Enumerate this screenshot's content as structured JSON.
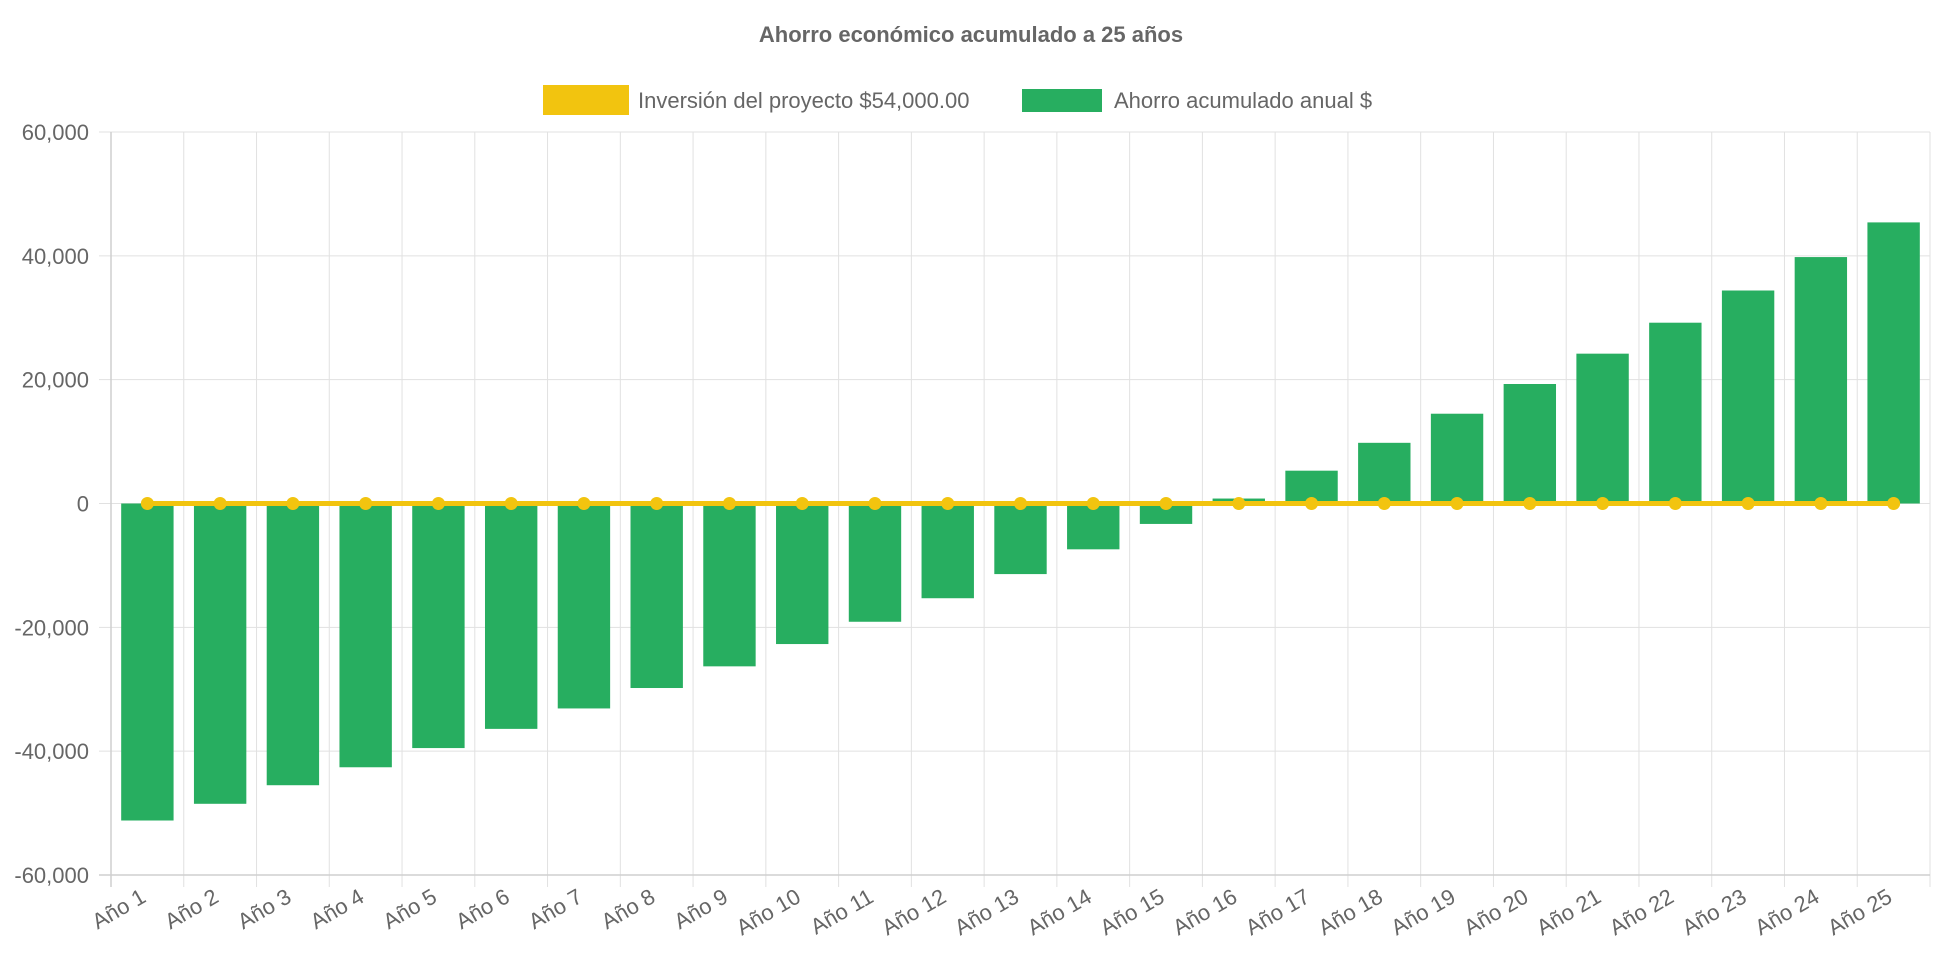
{
  "chart_data": {
    "type": "bar",
    "title": "Ahorro económico acumulado a 25 años",
    "categories": [
      "Año 1",
      "Año 2",
      "Año 3",
      "Año 4",
      "Año 5",
      "Año 6",
      "Año 7",
      "Año 8",
      "Año 9",
      "Año 10",
      "Año 11",
      "Año 12",
      "Año 13",
      "Año 14",
      "Año 15",
      "Año 16",
      "Año 17",
      "Año 18",
      "Año 19",
      "Año 20",
      "Año 21",
      "Año 22",
      "Año 23",
      "Año 24",
      "Año 25"
    ],
    "series": [
      {
        "name": "Inversión del proyecto $54,000.00",
        "type": "line",
        "color": "#f2c40f",
        "values": [
          0,
          0,
          0,
          0,
          0,
          0,
          0,
          0,
          0,
          0,
          0,
          0,
          0,
          0,
          0,
          0,
          0,
          0,
          0,
          0,
          0,
          0,
          0,
          0,
          0
        ]
      },
      {
        "name": "Ahorro acumulado anual $",
        "type": "bar",
        "color": "#27ae60",
        "values": [
          -51200,
          -48500,
          -45500,
          -42600,
          -39500,
          -36400,
          -33100,
          -29800,
          -26300,
          -22700,
          -19100,
          -15300,
          -11400,
          -7400,
          -3300,
          800,
          5300,
          9800,
          14500,
          19300,
          24200,
          29200,
          34400,
          39800,
          45400
        ]
      }
    ],
    "ylim": [
      -60000,
      60000
    ],
    "yticks": [
      "60,000",
      "40,000",
      "20,000",
      "0",
      "-20,000",
      "-40,000",
      "-60,000"
    ],
    "ytick_values": [
      60000,
      40000,
      20000,
      0,
      -20000,
      -40000,
      -60000
    ],
    "grid": true,
    "legend_position": "top-center"
  }
}
